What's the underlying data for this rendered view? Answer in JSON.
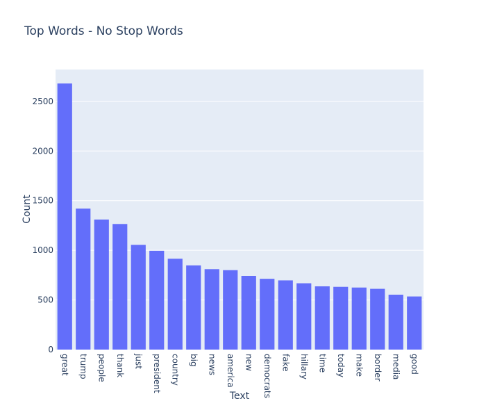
{
  "chart_data": {
    "type": "bar",
    "title": "Top Words - No Stop Words",
    "xlabel": "Text",
    "ylabel": "Count",
    "categories": [
      "great",
      "trump",
      "people",
      "thank",
      "just",
      "president",
      "country",
      "big",
      "news",
      "america",
      "new",
      "democrats",
      "fake",
      "hillary",
      "time",
      "today",
      "make",
      "border",
      "media",
      "good"
    ],
    "values": [
      2680,
      1420,
      1310,
      1265,
      1055,
      995,
      915,
      848,
      810,
      800,
      742,
      713,
      697,
      668,
      637,
      632,
      625,
      612,
      553,
      535
    ],
    "ylim": [
      0,
      2821
    ],
    "yticks": [
      0,
      500,
      1000,
      1500,
      2000,
      2500
    ],
    "ytick_labels": [
      "0",
      "500",
      "1000",
      "1500",
      "2000",
      "2500"
    ],
    "grid": true,
    "colors": {
      "bar": "#636efa",
      "plot_bg": "#e5ecf6",
      "grid": "#ffffff",
      "text": "#2a3f5f"
    }
  }
}
